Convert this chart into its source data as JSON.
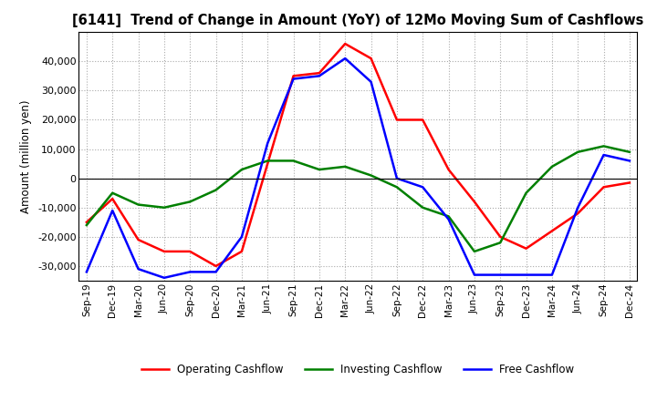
{
  "title": "[6141]  Trend of Change in Amount (YoY) of 12Mo Moving Sum of Cashflows",
  "ylabel": "Amount (million yen)",
  "ylim": [
    -35000,
    50000
  ],
  "yticks": [
    -30000,
    -20000,
    -10000,
    0,
    10000,
    20000,
    30000,
    40000
  ],
  "background_color": "#ffffff",
  "grid_color": "#aaaaaa",
  "x_labels": [
    "Sep-19",
    "Dec-19",
    "Mar-20",
    "Jun-20",
    "Sep-20",
    "Dec-20",
    "Mar-21",
    "Jun-21",
    "Sep-21",
    "Dec-21",
    "Mar-22",
    "Jun-22",
    "Sep-22",
    "Dec-22",
    "Mar-23",
    "Jun-23",
    "Sep-23",
    "Dec-23",
    "Mar-24",
    "Jun-24",
    "Sep-24",
    "Dec-24"
  ],
  "operating": [
    -15000,
    -7000,
    -21000,
    -25000,
    -25000,
    -30000,
    -25000,
    5000,
    35000,
    36000,
    46000,
    41000,
    20000,
    20000,
    3000,
    -8000,
    -20000,
    -24000,
    -18000,
    -12000,
    -3000,
    -1500
  ],
  "investing": [
    -16000,
    -5000,
    -9000,
    -10000,
    -8000,
    -4000,
    3000,
    6000,
    6000,
    3000,
    4000,
    1000,
    -3000,
    -10000,
    -13000,
    -25000,
    -22000,
    -5000,
    4000,
    9000,
    11000,
    9000
  ],
  "free": [
    -32000,
    -11000,
    -31000,
    -34000,
    -32000,
    -32000,
    -20000,
    12000,
    34000,
    35000,
    41000,
    33000,
    0,
    -3000,
    -14000,
    -33000,
    -33000,
    -33000,
    -33000,
    -10000,
    8000,
    6000
  ],
  "op_color": "#ff0000",
  "inv_color": "#008000",
  "free_color": "#0000ff",
  "line_width": 1.8
}
